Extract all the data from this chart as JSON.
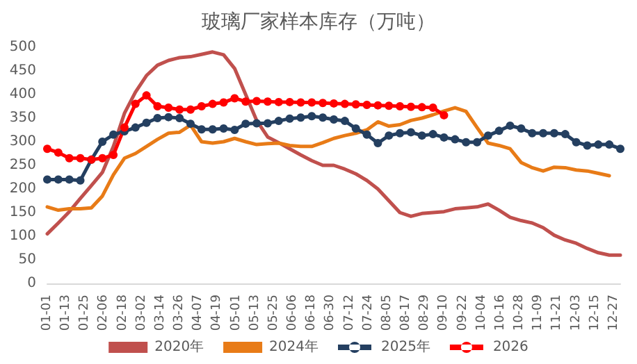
{
  "chart_data": {
    "type": "line",
    "title": "玻璃厂家样本库存（万吨）",
    "x": [
      "--01-01",
      "--01-08",
      "--01-15",
      "--01-22",
      "--01-29",
      "--02-05",
      "--02-12",
      "--02-19",
      "--02-26",
      "--03-05",
      "--03-12",
      "--03-19",
      "--03-26",
      "--04-02",
      "--04-09",
      "--04-16",
      "--04-23",
      "--04-30",
      "--05-07",
      "--05-14",
      "--05-21",
      "--05-28",
      "--06-04",
      "--06-11",
      "--06-18",
      "--06-25",
      "--07-02",
      "--07-09",
      "--07-16",
      "--07-23",
      "--07-30",
      "--08-06",
      "--08-13",
      "--08-20",
      "--08-27",
      "--09-03",
      "--09-10",
      "--09-17",
      "--09-24",
      "--10-01",
      "--10-08",
      "--10-15",
      "--10-22",
      "--10-29",
      "--11-05",
      "--11-12",
      "--11-19",
      "--11-26",
      "--12-03",
      "--12-10",
      "--12-17",
      "--12-24",
      "--12-31"
    ],
    "series": [
      {
        "name": "2020年",
        "color": "#c0504d",
        "marker": "none",
        "values": [
          105,
          128,
          152,
          180,
          207,
          235,
          290,
          360,
          405,
          440,
          462,
          472,
          478,
          480,
          485,
          490,
          484,
          455,
          400,
          345,
          310,
          298,
          285,
          272,
          260,
          250,
          250,
          242,
          232,
          218,
          200,
          175,
          150,
          142,
          148,
          150,
          152,
          158,
          160,
          162,
          168,
          155,
          140,
          133,
          128,
          118,
          102,
          92,
          85,
          74,
          65,
          60,
          60
        ]
      },
      {
        "name": "2024年",
        "color": "#e87b17",
        "marker": "none",
        "values": [
          162,
          155,
          158,
          158,
          160,
          185,
          230,
          265,
          275,
          290,
          305,
          318,
          320,
          335,
          300,
          297,
          300,
          307,
          300,
          294,
          296,
          297,
          292,
          290,
          290,
          298,
          307,
          313,
          318,
          325,
          342,
          333,
          336,
          345,
          350,
          357,
          365,
          372,
          364,
          330,
          297,
          292,
          285,
          256,
          245,
          238,
          246,
          245,
          240,
          238,
          233,
          228,
          null
        ]
      },
      {
        "name": "2025年",
        "color": "#243f60",
        "marker": "circle",
        "values": [
          220,
          220,
          220,
          218,
          262,
          300,
          315,
          322,
          330,
          340,
          350,
          352,
          350,
          338,
          326,
          326,
          328,
          325,
          338,
          339,
          339,
          344,
          349,
          351,
          354,
          351,
          347,
          344,
          328,
          315,
          297,
          313,
          318,
          320,
          313,
          316,
          309,
          305,
          299,
          299,
          313,
          323,
          334,
          328,
          318,
          318,
          318,
          316,
          299,
          292,
          294,
          294,
          285
        ]
      },
      {
        "name": "2026",
        "color": "#ff0000",
        "marker": "circle",
        "values": [
          285,
          277,
          265,
          265,
          262,
          265,
          272,
          330,
          380,
          398,
          375,
          372,
          368,
          368,
          375,
          380,
          383,
          392,
          385,
          386,
          385,
          384,
          384,
          383,
          383,
          382,
          381,
          380,
          379,
          378,
          377,
          376,
          375,
          374,
          373,
          372,
          356,
          null,
          null,
          null,
          null,
          null,
          null,
          null,
          null,
          null,
          null,
          null,
          null,
          null,
          null,
          null,
          null
        ]
      }
    ],
    "xlim": [
      "--01-01",
      "--12-31"
    ],
    "xticks": [
      {
        "value": "--01-01",
        "label": "01-01"
      },
      {
        "value": "--01-13",
        "label": "01-13"
      },
      {
        "value": "--01-25",
        "label": "01-25"
      },
      {
        "value": "--02-06",
        "label": "02-06"
      },
      {
        "value": "--02-18",
        "label": "02-18"
      },
      {
        "value": "--03-02",
        "label": "03-02"
      },
      {
        "value": "--03-14",
        "label": "03-14"
      },
      {
        "value": "--03-26",
        "label": "03-26"
      },
      {
        "value": "--04-07",
        "label": "04-07"
      },
      {
        "value": "--04-19",
        "label": "04-19"
      },
      {
        "value": "--05-01",
        "label": "05-01"
      },
      {
        "value": "--05-13",
        "label": "05-13"
      },
      {
        "value": "--05-25",
        "label": "05-25"
      },
      {
        "value": "--06-06",
        "label": "06-06"
      },
      {
        "value": "--06-18",
        "label": "06-18"
      },
      {
        "value": "--06-30",
        "label": "06-30"
      },
      {
        "value": "--07-12",
        "label": "07-12"
      },
      {
        "value": "--07-24",
        "label": "07-24"
      },
      {
        "value": "--08-05",
        "label": "08-05"
      },
      {
        "value": "--08-17",
        "label": "08-17"
      },
      {
        "value": "--08-29",
        "label": "08-29"
      },
      {
        "value": "--09-10",
        "label": "09-10"
      },
      {
        "value": "--09-22",
        "label": "09-22"
      },
      {
        "value": "--10-04",
        "label": "10-04"
      },
      {
        "value": "--10-16",
        "label": "10-16"
      },
      {
        "value": "--10-28",
        "label": "10-28"
      },
      {
        "value": "--11-09",
        "label": "11-09"
      },
      {
        "value": "--11-21",
        "label": "11-21"
      },
      {
        "value": "--12-03",
        "label": "12-03"
      },
      {
        "value": "--12-15",
        "label": "12-15"
      },
      {
        "value": "--12-27",
        "label": "12-27"
      }
    ],
    "ylim": [
      0,
      500
    ],
    "yticks": [
      0,
      50,
      100,
      150,
      200,
      250,
      300,
      350,
      400,
      450,
      500
    ],
    "grid": false,
    "legend": "bottom"
  }
}
